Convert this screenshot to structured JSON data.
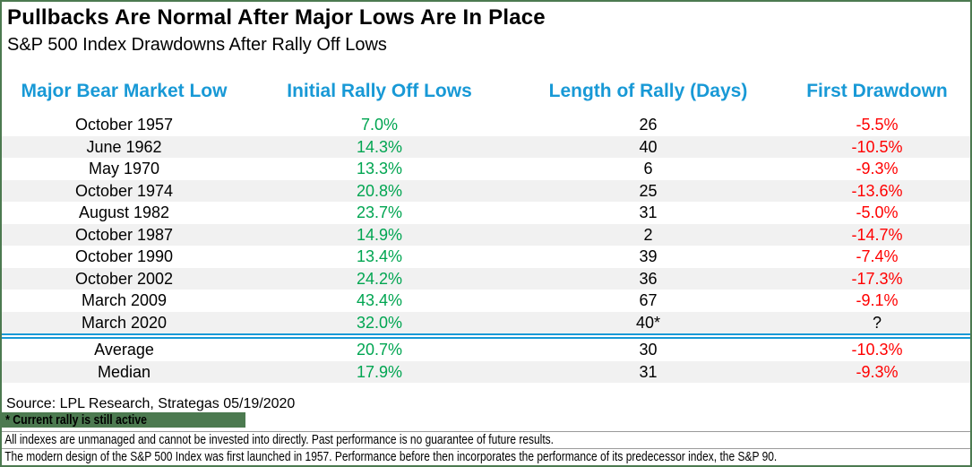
{
  "chart_data": {
    "type": "table",
    "title": "Pullbacks Are Normal After Major Lows Are In Place",
    "subtitle": "S&P 500 Index Drawdowns After Rally Off Lows",
    "columns": [
      "Major Bear Market Low",
      "Initial Rally Off Lows",
      "Length of Rally (Days)",
      "First Drawdown"
    ],
    "rows": [
      {
        "low": "October 1957",
        "rally_pct": "7.0%",
        "days": "26",
        "drawdown_pct": "-5.5%"
      },
      {
        "low": "June 1962",
        "rally_pct": "14.3%",
        "days": "40",
        "drawdown_pct": "-10.5%"
      },
      {
        "low": "May 1970",
        "rally_pct": "13.3%",
        "days": "6",
        "drawdown_pct": "-9.3%"
      },
      {
        "low": "October 1974",
        "rally_pct": "20.8%",
        "days": "25",
        "drawdown_pct": "-13.6%"
      },
      {
        "low": "August 1982",
        "rally_pct": "23.7%",
        "days": "31",
        "drawdown_pct": "-5.0%"
      },
      {
        "low": "October 1987",
        "rally_pct": "14.9%",
        "days": "2",
        "drawdown_pct": "-14.7%"
      },
      {
        "low": "October 1990",
        "rally_pct": "13.4%",
        "days": "39",
        "drawdown_pct": "-7.4%"
      },
      {
        "low": "October 2002",
        "rally_pct": "24.2%",
        "days": "36",
        "drawdown_pct": "-17.3%"
      },
      {
        "low": "March 2009",
        "rally_pct": "43.4%",
        "days": "67",
        "drawdown_pct": "-9.1%"
      },
      {
        "low": "March 2020",
        "rally_pct": "32.0%",
        "days": "40*",
        "drawdown_pct": "?",
        "drawdown_neutral": true
      }
    ],
    "summary_rows": [
      {
        "low": "Average",
        "rally_pct": "20.7%",
        "days": "30",
        "drawdown_pct": "-10.3%"
      },
      {
        "low": "Median",
        "rally_pct": "17.9%",
        "days": "31",
        "drawdown_pct": "-9.3%"
      }
    ],
    "footnote_marker": "* Current rally is still active"
  },
  "footer": {
    "source": "Source: LPL Research, Strategas 05/19/2020",
    "disclaimer1": "All indexes are unmanaged and cannot be invested into directly. Past performance is no guarantee of future results.",
    "disclaimer2": "The modern design of the S&P 500 Index was first launched in 1957. Performance before then incorporates the performance of its predecessor index, the S&P 90."
  },
  "colors": {
    "header_blue": "#1899d6",
    "positive_green": "#00a551",
    "negative_red": "#ff0000",
    "highlight_sage_green": "#4c7a50",
    "stripe_gray": "#f1f1f1"
  }
}
